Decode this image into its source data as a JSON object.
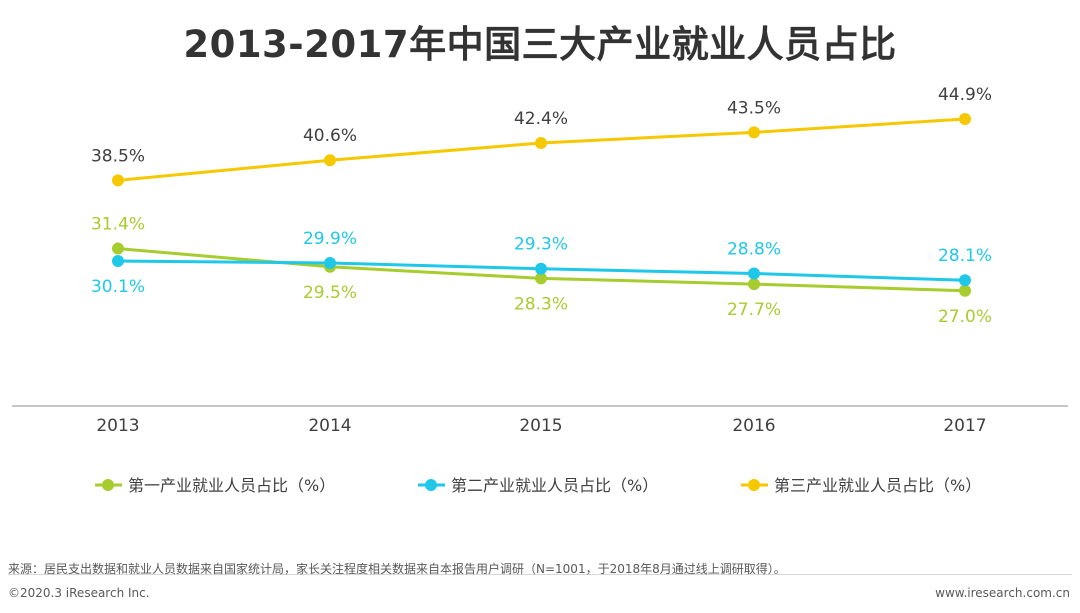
{
  "title": "2013-2017年中国三大产业就业人员占比",
  "chart_data": {
    "type": "line",
    "title": "2013-2017年中国三大产业就业人员占比",
    "categories": [
      "2013",
      "2014",
      "2015",
      "2016",
      "2017"
    ],
    "ylim": [
      15,
      50
    ],
    "grid": false,
    "legend_position": "bottom",
    "series": [
      {
        "name": "第一产业就业人员占比（%）",
        "color": "#a6cc2e",
        "values": [
          31.4,
          29.5,
          28.3,
          27.7,
          27.0
        ],
        "labels": [
          "31.4%",
          "29.5%",
          "28.3%",
          "27.7%",
          "27.0%"
        ],
        "label_side": [
          "above",
          "below",
          "below",
          "below",
          "below"
        ]
      },
      {
        "name": "第二产业就业人员占比（%）",
        "color": "#1fc8e8",
        "values": [
          30.1,
          29.9,
          29.3,
          28.8,
          28.1
        ],
        "labels": [
          "30.1%",
          "29.9%",
          "29.3%",
          "28.8%",
          "28.1%"
        ],
        "label_side": [
          "below",
          "above",
          "above",
          "above",
          "above"
        ]
      },
      {
        "name": "第三产业就业人员占比（%）",
        "color": "#f6c800",
        "values": [
          38.5,
          40.6,
          42.4,
          43.5,
          44.9
        ],
        "labels": [
          "38.5%",
          "40.6%",
          "42.4%",
          "43.5%",
          "44.9%"
        ],
        "label_side": [
          "above",
          "above",
          "above",
          "above",
          "above"
        ]
      }
    ]
  },
  "footer": {
    "source": "来源：居民支出数据和就业人员数据来自国家统计局，家长关注程度相关数据来自本报告用户调研（N=1001，于2018年8月通过线上调研取得）。",
    "copyright": "©2020.3 iResearch Inc.",
    "website": "www.iresearch.com.cn"
  }
}
